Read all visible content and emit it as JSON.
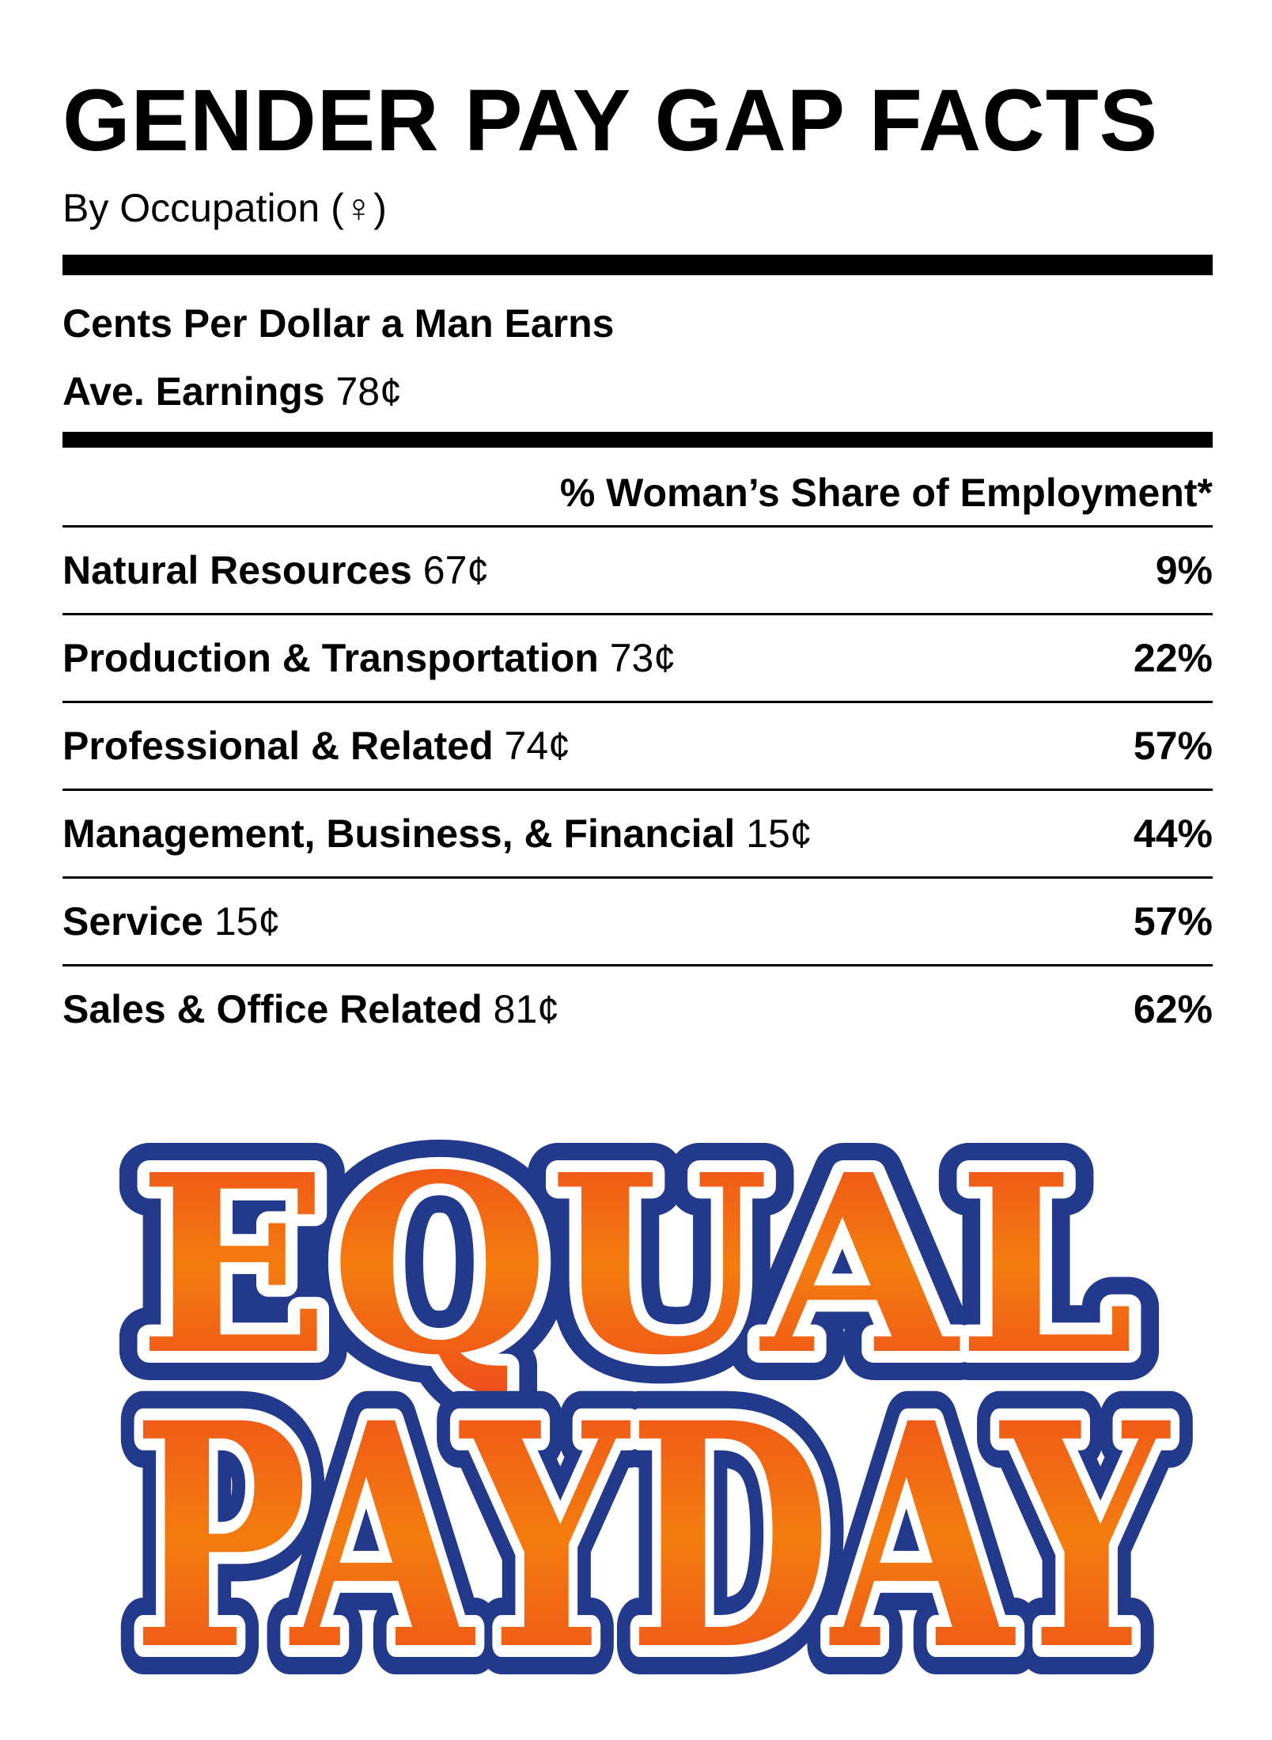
{
  "header": {
    "title": "GENDER PAY GAP FACTS",
    "subtitle": "By Occupation (♀)"
  },
  "summary": {
    "line1": "Cents Per Dollar a Man Earns",
    "line2_label": "Ave. Earnings",
    "line2_value": "78¢"
  },
  "table": {
    "column_header": "% Woman’s Share of Employment*",
    "rows": [
      {
        "name": "Natural Resources",
        "cents": "67¢",
        "share": "9%"
      },
      {
        "name": "Production & Transportation",
        "cents": "73¢",
        "share": "22%"
      },
      {
        "name": "Professional & Related",
        "cents": "74¢",
        "share": "57%"
      },
      {
        "name": "Management, Business, & Financial",
        "cents": "15¢",
        "share": "44%"
      },
      {
        "name": "Service",
        "cents": "15¢",
        "share": "57%"
      },
      {
        "name": "Sales & Office Related",
        "cents": "81¢",
        "share": "62%"
      }
    ]
  },
  "banner": {
    "line1": "EQUAL",
    "line2": "PAYDAY",
    "colors": {
      "outer_outline": "#233a8c",
      "inner_outline": "#ffffff",
      "fill_top": "#ee4a1c",
      "fill_mid": "#f47c0e"
    }
  }
}
